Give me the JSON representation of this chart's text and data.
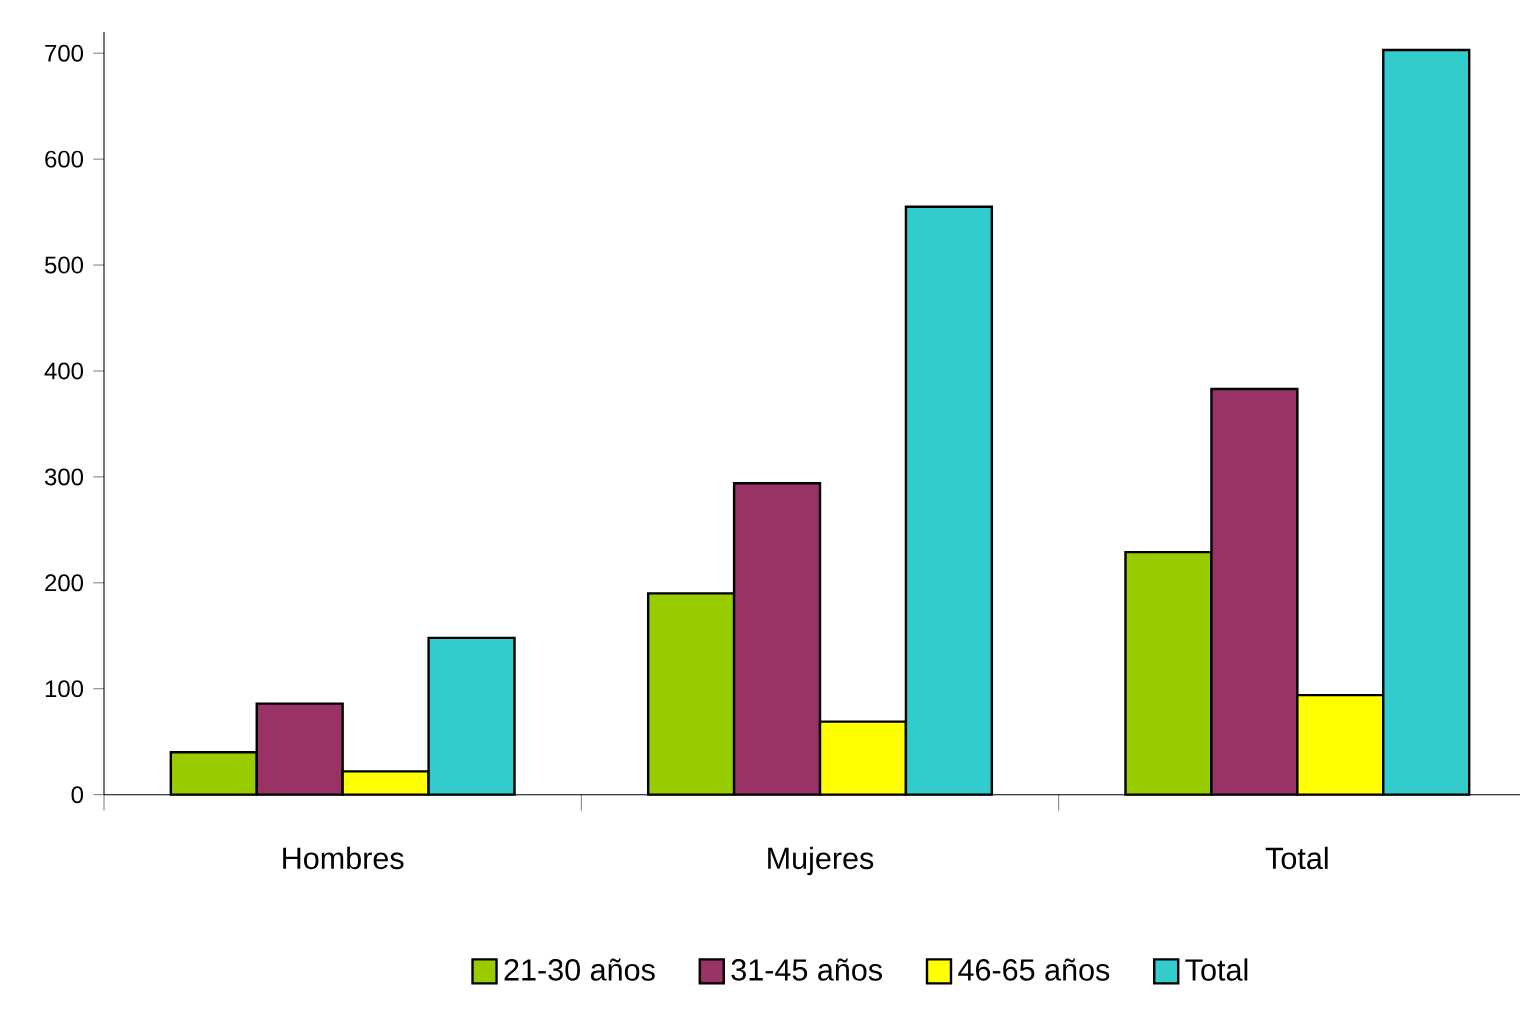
{
  "chart_data": {
    "type": "bar",
    "categories": [
      "Hombres",
      "Mujeres",
      "Total"
    ],
    "series": [
      {
        "name": "21-30 años",
        "color": "#99cc00",
        "values": [
          40,
          190,
          229
        ]
      },
      {
        "name": "31-45 años",
        "color": "#993366",
        "values": [
          86,
          294,
          383
        ]
      },
      {
        "name": "46-65 años",
        "color": "#ffff00",
        "values": [
          22,
          69,
          94
        ]
      },
      {
        "name": "Total",
        "color": "#33cccc",
        "values": [
          148,
          555,
          703
        ]
      }
    ],
    "ylim": [
      0,
      720
    ],
    "yticks": [
      0,
      100,
      200,
      300,
      400,
      500,
      600,
      700
    ],
    "legend": "bottom"
  }
}
